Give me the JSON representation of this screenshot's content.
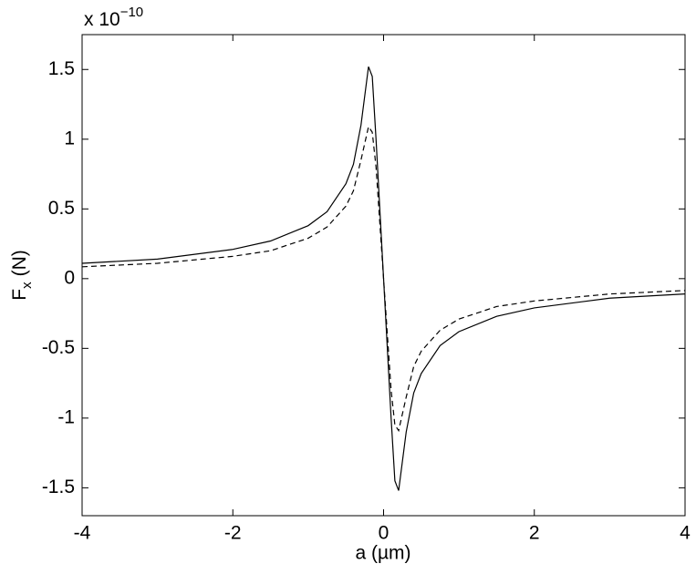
{
  "chart_data": {
    "type": "line",
    "x_label": "a (µm)",
    "y_label": {
      "main": "F",
      "sub": "x",
      "unit": "(N)"
    },
    "y_multiplier": {
      "base": "x 10",
      "exponent": "−10"
    },
    "x": [
      -4,
      -3,
      -2,
      -1.5,
      -1,
      -0.75,
      -0.5,
      -0.4,
      -0.3,
      -0.2,
      -0.15,
      -0.1,
      -0.05,
      0,
      0.05,
      0.1,
      0.15,
      0.2,
      0.3,
      0.4,
      0.5,
      0.75,
      1,
      1.5,
      2,
      3,
      4
    ],
    "series": [
      {
        "color": "#000000",
        "dash": false,
        "values": [
          0.11,
          0.14,
          0.21,
          0.27,
          0.38,
          0.48,
          0.68,
          0.82,
          1.1,
          1.52,
          1.45,
          1.0,
          0.5,
          0,
          -0.5,
          -1.0,
          -1.45,
          -1.52,
          -1.1,
          -0.82,
          -0.68,
          -0.48,
          -0.38,
          -0.27,
          -0.21,
          -0.14,
          -0.11
        ]
      },
      {
        "color": "#000000",
        "dash": true,
        "values": [
          0.085,
          0.11,
          0.16,
          0.2,
          0.29,
          0.37,
          0.52,
          0.63,
          0.85,
          1.09,
          1.05,
          0.8,
          0.4,
          0,
          -0.4,
          -0.8,
          -1.05,
          -1.09,
          -0.85,
          -0.63,
          -0.52,
          -0.37,
          -0.29,
          -0.2,
          -0.16,
          -0.11,
          -0.085
        ]
      }
    ],
    "xlim": [
      -4,
      4
    ],
    "xticks": [
      -4,
      -2,
      0,
      2,
      4
    ],
    "ylim": [
      -1.7,
      1.75
    ],
    "yticks": [
      -1.5,
      -1,
      -0.5,
      0,
      0.5,
      1,
      1.5
    ],
    "grid": false
  }
}
